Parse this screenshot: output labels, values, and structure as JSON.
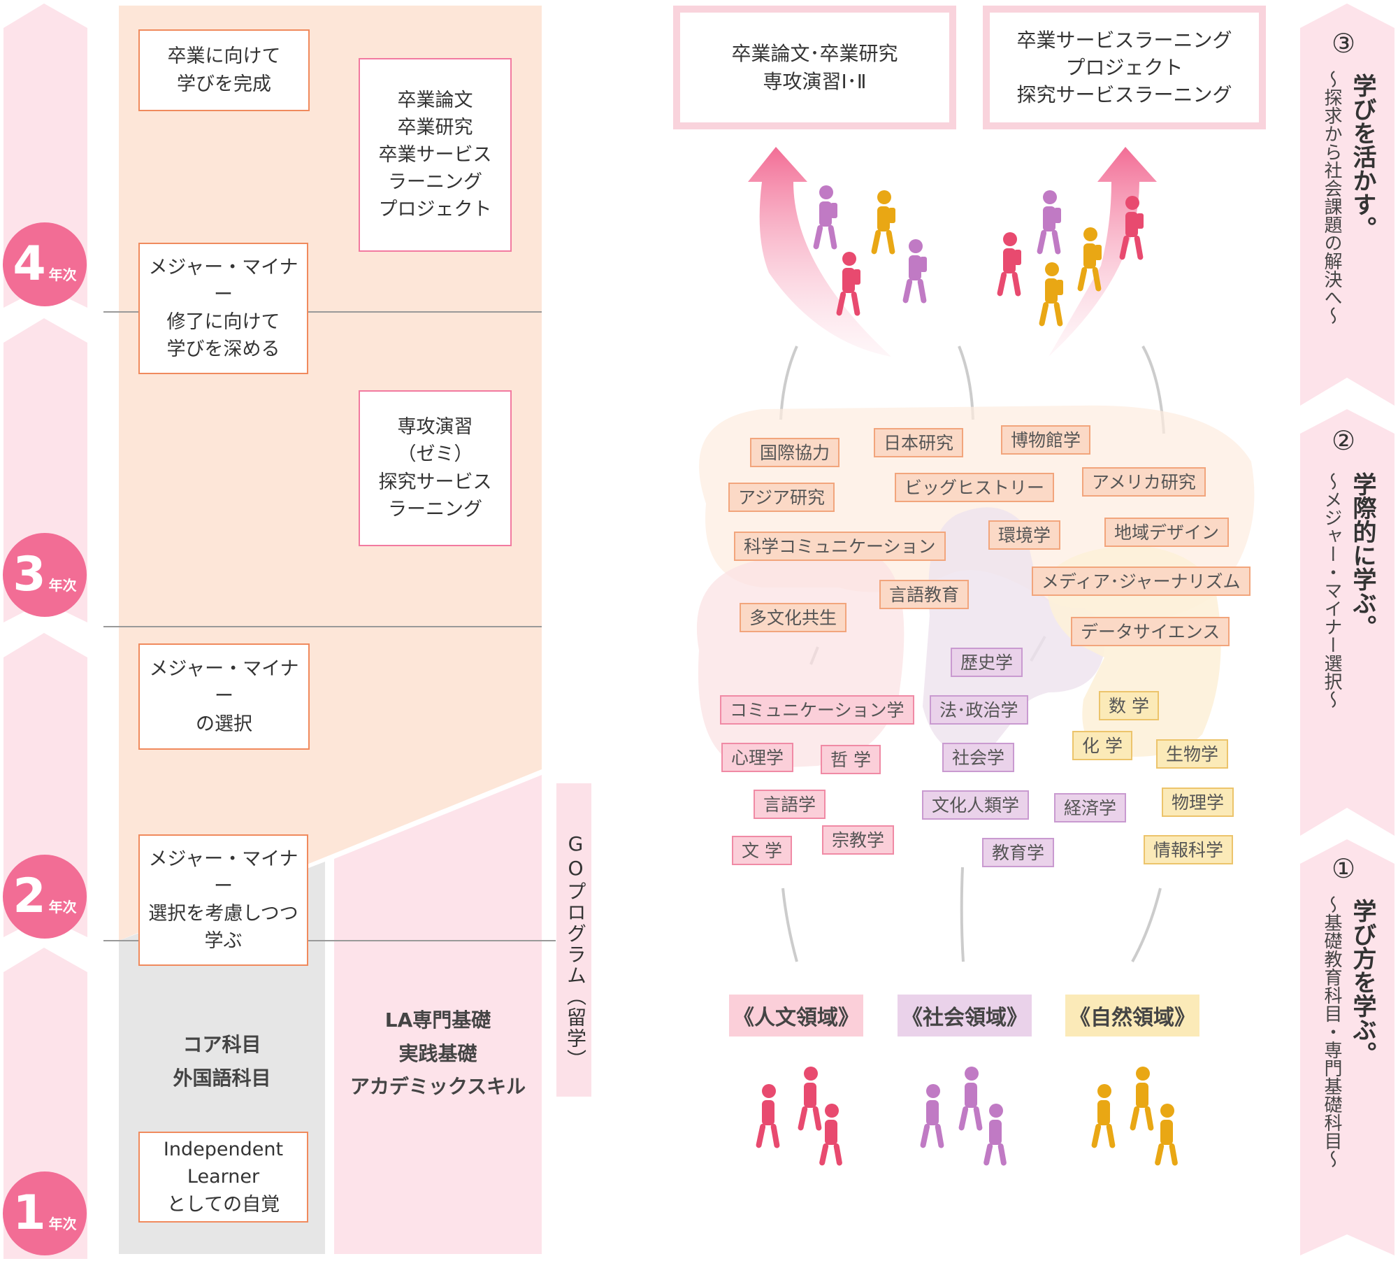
{
  "years": [
    {
      "num": "4",
      "suffix": "年次"
    },
    {
      "num": "3",
      "suffix": "年次"
    },
    {
      "num": "2",
      "suffix": "年次"
    },
    {
      "num": "1",
      "suffix": "年次"
    }
  ],
  "left_boxes": {
    "complete": "卒業に向けて\n学びを完成",
    "deepen": "メジャー・マイナー\n修了に向けて\n学びを深める",
    "select": "メジャー・マイナー\nの選択",
    "consider": "メジャー・マイナー\n選択を考慮しつつ\n学ぶ",
    "independent": "Independent\nLearner\nとしての自覚"
  },
  "right_boxes": {
    "thesis": "卒業論文\n卒業研究\n卒業サービス\nラーニング\nプロジェクト",
    "seminar": "専攻演習\n（ゼミ）\n探究サービス\nラーニング"
  },
  "core": "コア科目\n外国語科目",
  "la": "LA専門基礎\n実践基礎\nアカデミックスキル",
  "go_program": "GOプログラム（留学）",
  "top_boxes": [
    {
      "text": "卒業論文･卒業研究\n専攻演習Ⅰ･Ⅱ"
    },
    {
      "text": "卒業サービスラーニング\nプロジェクト\n探究サービスラーニング"
    }
  ],
  "interdisciplinary_tags": [
    "国際協力",
    "日本研究",
    "博物館学",
    "アジア研究",
    "ビッグヒストリー",
    "アメリカ研究",
    "科学コミュニケーション",
    "環境学",
    "地域デザイン",
    "メディア･ジャーナリズム",
    "言語教育",
    "多文化共生",
    "データサイエンス"
  ],
  "humanities_tags": [
    "コミュニケーション学",
    "心理学",
    "哲 学",
    "言語学",
    "文 学",
    "宗教学"
  ],
  "social_tags": [
    "歴史学",
    "法･政治学",
    "社会学",
    "文化人類学",
    "経済学",
    "教育学"
  ],
  "natural_tags": [
    "数 学",
    "化 学",
    "生物学",
    "物理学",
    "情報科学"
  ],
  "domains": [
    "《人文領域》",
    "《社会領域》",
    "《自然領域》"
  ],
  "stages": [
    {
      "num": "③",
      "title": "学びを活かす。",
      "sub": "〜探求から社会課題の解決へ〜"
    },
    {
      "num": "②",
      "title": "学際的に学ぶ。",
      "sub": "〜メジャー・マイナー選択〜"
    },
    {
      "num": "①",
      "title": "学び方を学ぶ。",
      "sub": "〜基礎教育科目・専門基礎科目〜"
    }
  ],
  "colors": {
    "pink": "#f26d95",
    "magenta": "#e84a6f",
    "purple": "#c07ac4",
    "yellow": "#e9a714"
  }
}
